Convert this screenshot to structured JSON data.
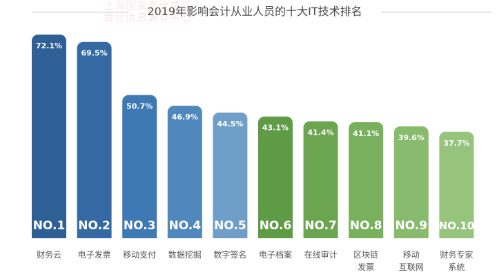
{
  "watermark": "上海国家会计学院\n会计信息调查中心",
  "chart_data": {
    "type": "bar",
    "title": "2019年影响会计从业人员的十大IT技术排名",
    "categories": [
      "财务云",
      "电子发票",
      "移动支付",
      "数据挖掘",
      "数字签名",
      "电子档案",
      "在线审计",
      "区块链\n发票",
      "移动\n互联网",
      "财务专家\n系统"
    ],
    "values": [
      72.1,
      69.5,
      50.7,
      46.9,
      44.5,
      43.1,
      41.4,
      41.1,
      39.6,
      37.7
    ],
    "value_labels": [
      "72.1%",
      "69.5%",
      "50.7%",
      "46.9%",
      "44.5%",
      "43.1%",
      "41.4%",
      "41.1%",
      "39.6%",
      "37.7%"
    ],
    "rank_labels": [
      "NO.1",
      "NO.2",
      "NO.3",
      "NO.4",
      "NO.5",
      "NO.6",
      "NO.7",
      "NO.8",
      "NO.9",
      "NO.10"
    ],
    "bar_colors": [
      "#2e5f95",
      "#3469a3",
      "#3f79b3",
      "#5087bd",
      "#6f9fc8",
      "#5f9a45",
      "#6ba550",
      "#79b05e",
      "#88bb6d",
      "#96c47d"
    ],
    "grid": false
  }
}
